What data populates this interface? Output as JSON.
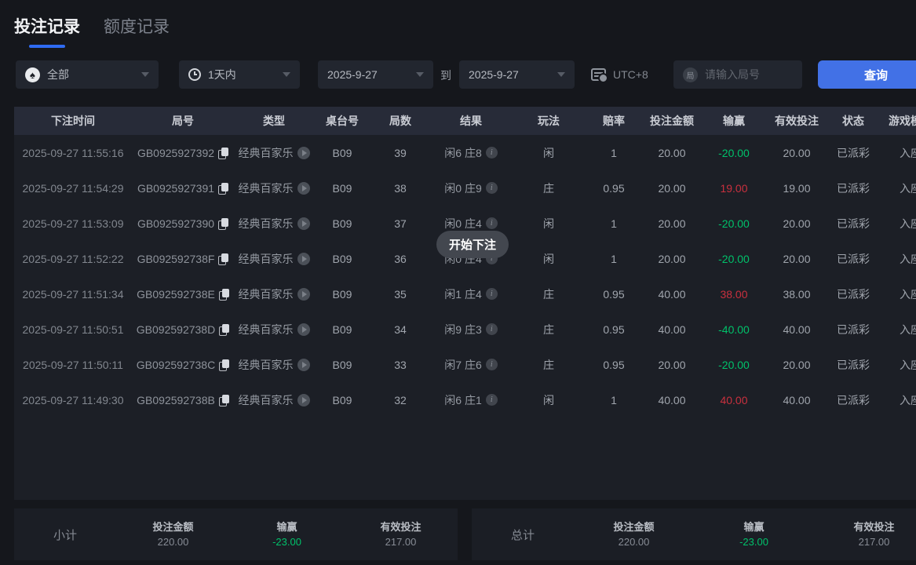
{
  "tabs": {
    "bet_records": "投注记录",
    "quota_records": "额度记录"
  },
  "filters": {
    "game_type": {
      "value": "全部"
    },
    "time_range": {
      "value": "1天内"
    },
    "date_from": {
      "value": "2025-9-27"
    },
    "to_label": "到",
    "date_to": {
      "value": "2025-9-27"
    },
    "timezone": "UTC+8",
    "round_search": {
      "placeholder": "请输入局号",
      "value": ""
    },
    "query_button": "查询"
  },
  "table": {
    "headers": [
      "下注时间",
      "局号",
      "类型",
      "桌台号",
      "局数",
      "结果",
      "玩法",
      "赔率",
      "投注金额",
      "输赢",
      "有效投注",
      "状态",
      "游戏模式"
    ],
    "rows": [
      {
        "time": "2025-09-27 11:55:16",
        "round_id": "GB0925927392",
        "game_type": "经典百家乐",
        "table_no": "B09",
        "round_no": "39",
        "result": "闲6 庄8",
        "play": "闲",
        "odds": "1",
        "bet": "20.00",
        "win": "-20.00",
        "win_color": "green",
        "valid": "20.00",
        "status": "已派彩",
        "mode": "入座"
      },
      {
        "time": "2025-09-27 11:54:29",
        "round_id": "GB0925927391",
        "game_type": "经典百家乐",
        "table_no": "B09",
        "round_no": "38",
        "result": "闲0 庄9",
        "play": "庄",
        "odds": "0.95",
        "bet": "20.00",
        "win": "19.00",
        "win_color": "red",
        "valid": "19.00",
        "status": "已派彩",
        "mode": "入座"
      },
      {
        "time": "2025-09-27 11:53:09",
        "round_id": "GB0925927390",
        "game_type": "经典百家乐",
        "table_no": "B09",
        "round_no": "37",
        "result": "闲0 庄4",
        "play": "闲",
        "odds": "1",
        "bet": "20.00",
        "win": "-20.00",
        "win_color": "green",
        "valid": "20.00",
        "status": "已派彩",
        "mode": "入座"
      },
      {
        "time": "2025-09-27 11:52:22",
        "round_id": "GB092592738F",
        "game_type": "经典百家乐",
        "table_no": "B09",
        "round_no": "36",
        "result": "闲0 庄4",
        "play": "闲",
        "odds": "1",
        "bet": "20.00",
        "win": "-20.00",
        "win_color": "green",
        "valid": "20.00",
        "status": "已派彩",
        "mode": "入座"
      },
      {
        "time": "2025-09-27 11:51:34",
        "round_id": "GB092592738E",
        "game_type": "经典百家乐",
        "table_no": "B09",
        "round_no": "35",
        "result": "闲1 庄4",
        "play": "庄",
        "odds": "0.95",
        "bet": "40.00",
        "win": "38.00",
        "win_color": "red",
        "valid": "38.00",
        "status": "已派彩",
        "mode": "入座"
      },
      {
        "time": "2025-09-27 11:50:51",
        "round_id": "GB092592738D",
        "game_type": "经典百家乐",
        "table_no": "B09",
        "round_no": "34",
        "result": "闲9 庄3",
        "play": "庄",
        "odds": "0.95",
        "bet": "40.00",
        "win": "-40.00",
        "win_color": "green",
        "valid": "40.00",
        "status": "已派彩",
        "mode": "入座"
      },
      {
        "time": "2025-09-27 11:50:11",
        "round_id": "GB092592738C",
        "game_type": "经典百家乐",
        "table_no": "B09",
        "round_no": "33",
        "result": "闲7 庄6",
        "play": "庄",
        "odds": "0.95",
        "bet": "20.00",
        "win": "-20.00",
        "win_color": "green",
        "valid": "20.00",
        "status": "已派彩",
        "mode": "入座"
      },
      {
        "time": "2025-09-27 11:49:30",
        "round_id": "GB092592738B",
        "game_type": "经典百家乐",
        "table_no": "B09",
        "round_no": "32",
        "result": "闲6 庄1",
        "play": "闲",
        "odds": "1",
        "bet": "40.00",
        "win": "40.00",
        "win_color": "red",
        "valid": "40.00",
        "status": "已派彩",
        "mode": "入座"
      }
    ]
  },
  "tooltip": "开始下注",
  "summary": {
    "labels": {
      "bet": "投注金额",
      "win": "输赢",
      "valid": "有效投注"
    },
    "subtotal": {
      "label": "小计",
      "bet": "220.00",
      "win": "-23.00",
      "win_color": "green",
      "valid": "217.00"
    },
    "total": {
      "label": "总计",
      "bet": "220.00",
      "win": "-23.00",
      "win_color": "green",
      "valid": "217.00"
    }
  },
  "colors": {
    "accent_blue": "#4271e6",
    "win_red": "#c9303e",
    "loss_green": "#00c16a"
  }
}
